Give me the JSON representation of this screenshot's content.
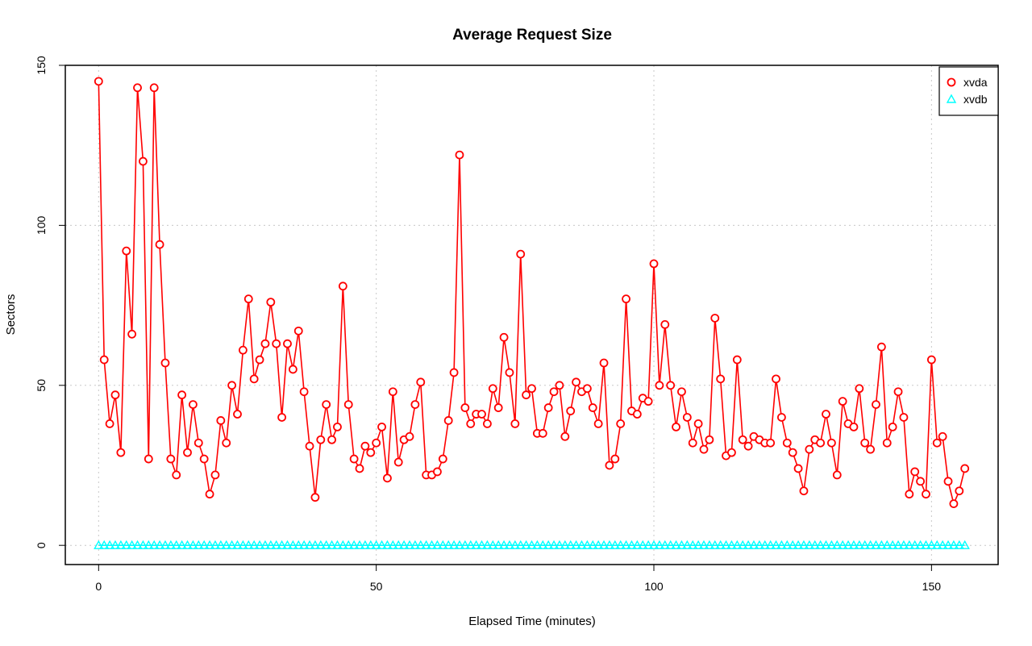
{
  "chart_data": {
    "type": "line",
    "title": "Average Request Size",
    "xlabel": "Elapsed Time (minutes)",
    "ylabel": "Sectors",
    "xlim": [
      -6,
      162
    ],
    "ylim": [
      -6,
      150
    ],
    "x_ticks": [
      0,
      50,
      100,
      150
    ],
    "y_ticks": [
      0,
      50,
      100,
      150
    ],
    "grid": true,
    "legend_position": "top-right",
    "series": [
      {
        "name": "xvda",
        "color": "#ff0000",
        "marker": "circle",
        "values": [
          145,
          58,
          38,
          47,
          29,
          92,
          66,
          143,
          120,
          27,
          143,
          94,
          57,
          27,
          22,
          47,
          29,
          44,
          32,
          27,
          16,
          22,
          39,
          32,
          50,
          41,
          61,
          77,
          52,
          58,
          63,
          76,
          63,
          40,
          63,
          55,
          67,
          48,
          31,
          15,
          33,
          44,
          33,
          37,
          81,
          44,
          27,
          24,
          31,
          29,
          32,
          37,
          21,
          48,
          26,
          33,
          34,
          44,
          51,
          22,
          22,
          23,
          27,
          39,
          54,
          122,
          43,
          38,
          41,
          41,
          38,
          49,
          43,
          65,
          54,
          38,
          91,
          47,
          49,
          35,
          35,
          43,
          48,
          50,
          34,
          42,
          51,
          48,
          49,
          43,
          38,
          57,
          25,
          27,
          38,
          77,
          42,
          41,
          46,
          45,
          88,
          50,
          69,
          50,
          37,
          48,
          40,
          32,
          38,
          30,
          33,
          71,
          52,
          28,
          29,
          58,
          33,
          31,
          34,
          33,
          32,
          32,
          52,
          40,
          32,
          29,
          24,
          17,
          30,
          33,
          32,
          41,
          32,
          22,
          45,
          38,
          37,
          49,
          32,
          30,
          44,
          62,
          32,
          37,
          48,
          40,
          16,
          23,
          20,
          16,
          58,
          32,
          34,
          20,
          13,
          17,
          24
        ]
      },
      {
        "name": "xvdb",
        "color": "#00ffff",
        "marker": "triangle",
        "values": [
          0,
          0,
          0,
          0,
          0,
          0,
          0,
          0,
          0,
          0,
          0,
          0,
          0,
          0,
          0,
          0,
          0,
          0,
          0,
          0,
          0,
          0,
          0,
          0,
          0,
          0,
          0,
          0,
          0,
          0,
          0,
          0,
          0,
          0,
          0,
          0,
          0,
          0,
          0,
          0,
          0,
          0,
          0,
          0,
          0,
          0,
          0,
          0,
          0,
          0,
          0,
          0,
          0,
          0,
          0,
          0,
          0,
          0,
          0,
          0,
          0,
          0,
          0,
          0,
          0,
          0,
          0,
          0,
          0,
          0,
          0,
          0,
          0,
          0,
          0,
          0,
          0,
          0,
          0,
          0,
          0,
          0,
          0,
          0,
          0,
          0,
          0,
          0,
          0,
          0,
          0,
          0,
          0,
          0,
          0,
          0,
          0,
          0,
          0,
          0,
          0,
          0,
          0,
          0,
          0,
          0,
          0,
          0,
          0,
          0,
          0,
          0,
          0,
          0,
          0,
          0,
          0,
          0,
          0,
          0,
          0,
          0,
          0,
          0,
          0,
          0,
          0,
          0,
          0,
          0,
          0,
          0,
          0,
          0,
          0,
          0,
          0,
          0,
          0,
          0,
          0,
          0,
          0,
          0,
          0,
          0,
          0,
          0,
          0,
          0,
          0,
          0,
          0,
          0,
          0,
          0,
          0
        ]
      }
    ]
  }
}
